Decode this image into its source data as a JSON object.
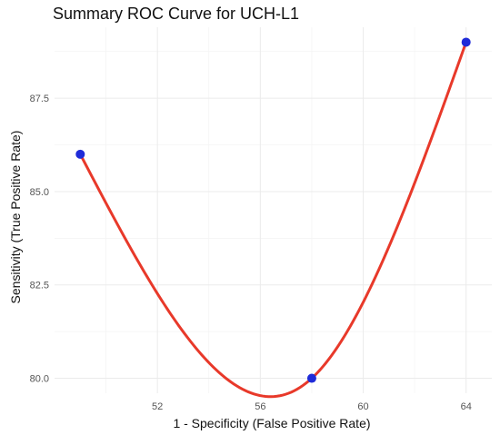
{
  "chart_data": {
    "type": "line",
    "title": "Summary ROC Curve for UCH-L1",
    "xlabel": "1 - Specificity (False Positive Rate)",
    "ylabel": "Sensitivity (True Positive Rate)",
    "xlim": [
      48.0,
      65.0
    ],
    "ylim": [
      79.6,
      89.4
    ],
    "x_ticks": [
      52,
      56,
      60,
      64
    ],
    "y_ticks": [
      80.0,
      82.5,
      85.0,
      87.5
    ],
    "x_tick_labels": [
      "52",
      "56",
      "60",
      "64"
    ],
    "y_tick_labels": [
      "80.0",
      "82.5",
      "85.0",
      "87.5"
    ],
    "grid": true,
    "points": [
      {
        "x": 49,
        "y": 86
      },
      {
        "x": 58,
        "y": 80
      },
      {
        "x": 64,
        "y": 89
      }
    ],
    "point_color": "#1f2bd8",
    "line_color": "#e8392a"
  }
}
